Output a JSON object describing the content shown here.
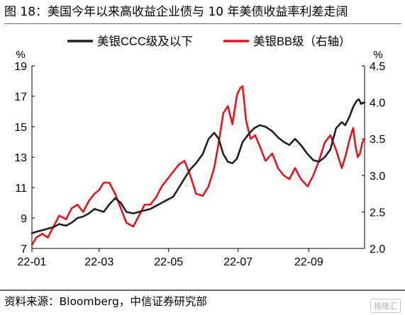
{
  "figure": {
    "title": "图 18：美国今年以来高收益企业债与 10 年美债收益率利差走阔",
    "source": "资料来源：Bloomberg，中信证券研究部",
    "watermark": "格隆汇"
  },
  "chart_data": {
    "type": "line",
    "title": "",
    "xlabel": "",
    "x_ticks": [
      "22-01",
      "22-03",
      "22-05",
      "22-07",
      "22-09"
    ],
    "x_range": [
      "2022-01-01",
      "2022-10-20"
    ],
    "left_axis": {
      "unit": "%",
      "ylim": [
        7,
        19
      ],
      "ticks": [
        7,
        9,
        11,
        13,
        15,
        17,
        19
      ]
    },
    "right_axis": {
      "unit": "%",
      "ylim": [
        2.0,
        4.5
      ],
      "ticks": [
        "2.0",
        "2.5",
        "3.0",
        "3.5",
        "4.0",
        "4.5"
      ]
    },
    "legend_position": "top",
    "colors": {
      "ccc": "#231f20",
      "bb": "#e4141c"
    },
    "series": [
      {
        "name": "美银CCC级及以下",
        "axis": "left",
        "points": [
          [
            "2022-01-01",
            8.0
          ],
          [
            "2022-01-05",
            8.1
          ],
          [
            "2022-01-10",
            8.2
          ],
          [
            "2022-01-15",
            8.3
          ],
          [
            "2022-01-20",
            8.4
          ],
          [
            "2022-01-25",
            8.6
          ],
          [
            "2022-01-31",
            8.5
          ],
          [
            "2022-02-05",
            8.7
          ],
          [
            "2022-02-10",
            9.0
          ],
          [
            "2022-02-15",
            9.1
          ],
          [
            "2022-02-20",
            9.3
          ],
          [
            "2022-02-25",
            9.6
          ],
          [
            "2022-03-01",
            9.5
          ],
          [
            "2022-03-05",
            9.4
          ],
          [
            "2022-03-10",
            9.9
          ],
          [
            "2022-03-15",
            10.3
          ],
          [
            "2022-03-20",
            10.0
          ],
          [
            "2022-03-25",
            9.4
          ],
          [
            "2022-03-31",
            9.3
          ],
          [
            "2022-04-05",
            9.4
          ],
          [
            "2022-04-10",
            9.5
          ],
          [
            "2022-04-15",
            9.6
          ],
          [
            "2022-04-20",
            9.8
          ],
          [
            "2022-04-25",
            10.0
          ],
          [
            "2022-04-30",
            10.2
          ],
          [
            "2022-05-05",
            10.4
          ],
          [
            "2022-05-10",
            11.0
          ],
          [
            "2022-05-15",
            11.6
          ],
          [
            "2022-05-20",
            12.2
          ],
          [
            "2022-05-25",
            12.6
          ],
          [
            "2022-05-31",
            13.2
          ],
          [
            "2022-06-05",
            14.2
          ],
          [
            "2022-06-10",
            14.6
          ],
          [
            "2022-06-14",
            14.2
          ],
          [
            "2022-06-18",
            13.2
          ],
          [
            "2022-06-22",
            12.7
          ],
          [
            "2022-06-26",
            12.6
          ],
          [
            "2022-06-30",
            12.9
          ],
          [
            "2022-07-05",
            14.0
          ],
          [
            "2022-07-10",
            14.5
          ],
          [
            "2022-07-15",
            14.9
          ],
          [
            "2022-07-20",
            15.1
          ],
          [
            "2022-07-25",
            15.0
          ],
          [
            "2022-07-31",
            14.7
          ],
          [
            "2022-08-05",
            14.3
          ],
          [
            "2022-08-10",
            14.0
          ],
          [
            "2022-08-15",
            13.8
          ],
          [
            "2022-08-20",
            14.2
          ],
          [
            "2022-08-25",
            13.8
          ],
          [
            "2022-08-31",
            13.2
          ],
          [
            "2022-09-05",
            12.8
          ],
          [
            "2022-09-10",
            12.7
          ],
          [
            "2022-09-15",
            13.0
          ],
          [
            "2022-09-20",
            13.5
          ],
          [
            "2022-09-25",
            14.9
          ],
          [
            "2022-09-30",
            15.3
          ],
          [
            "2022-10-03",
            15.1
          ],
          [
            "2022-10-07",
            15.7
          ],
          [
            "2022-10-10",
            16.3
          ],
          [
            "2022-10-13",
            16.7
          ],
          [
            "2022-10-15",
            16.8
          ],
          [
            "2022-10-17",
            16.5
          ],
          [
            "2022-10-20",
            16.6
          ]
        ]
      },
      {
        "name": "美银BB级（右轴）",
        "axis": "right",
        "points": [
          [
            "2022-01-01",
            2.05
          ],
          [
            "2022-01-05",
            2.15
          ],
          [
            "2022-01-10",
            2.2
          ],
          [
            "2022-01-15",
            2.15
          ],
          [
            "2022-01-20",
            2.3
          ],
          [
            "2022-01-25",
            2.45
          ],
          [
            "2022-01-31",
            2.4
          ],
          [
            "2022-02-05",
            2.55
          ],
          [
            "2022-02-10",
            2.6
          ],
          [
            "2022-02-15",
            2.5
          ],
          [
            "2022-02-20",
            2.65
          ],
          [
            "2022-02-25",
            2.75
          ],
          [
            "2022-03-01",
            2.8
          ],
          [
            "2022-03-05",
            2.9
          ],
          [
            "2022-03-10",
            2.9
          ],
          [
            "2022-03-15",
            2.75
          ],
          [
            "2022-03-20",
            2.55
          ],
          [
            "2022-03-25",
            2.35
          ],
          [
            "2022-03-31",
            2.3
          ],
          [
            "2022-04-05",
            2.45
          ],
          [
            "2022-04-10",
            2.6
          ],
          [
            "2022-04-15",
            2.6
          ],
          [
            "2022-04-20",
            2.7
          ],
          [
            "2022-04-25",
            2.85
          ],
          [
            "2022-04-30",
            2.95
          ],
          [
            "2022-05-05",
            3.05
          ],
          [
            "2022-05-10",
            3.15
          ],
          [
            "2022-05-15",
            3.2
          ],
          [
            "2022-05-20",
            3.0
          ],
          [
            "2022-05-25",
            2.75
          ],
          [
            "2022-05-31",
            2.72
          ],
          [
            "2022-06-05",
            2.85
          ],
          [
            "2022-06-10",
            3.1
          ],
          [
            "2022-06-14",
            3.45
          ],
          [
            "2022-06-18",
            3.85
          ],
          [
            "2022-06-22",
            3.95
          ],
          [
            "2022-06-26",
            3.7
          ],
          [
            "2022-06-30",
            4.1
          ],
          [
            "2022-07-03",
            4.2
          ],
          [
            "2022-07-05",
            4.22
          ],
          [
            "2022-07-08",
            3.75
          ],
          [
            "2022-07-12",
            3.5
          ],
          [
            "2022-07-16",
            3.55
          ],
          [
            "2022-07-20",
            3.4
          ],
          [
            "2022-07-25",
            3.2
          ],
          [
            "2022-07-31",
            3.3
          ],
          [
            "2022-08-05",
            3.1
          ],
          [
            "2022-08-10",
            3.0
          ],
          [
            "2022-08-15",
            2.95
          ],
          [
            "2022-08-20",
            3.1
          ],
          [
            "2022-08-25",
            2.95
          ],
          [
            "2022-08-31",
            2.85
          ],
          [
            "2022-09-05",
            3.0
          ],
          [
            "2022-09-10",
            3.2
          ],
          [
            "2022-09-15",
            3.45
          ],
          [
            "2022-09-20",
            3.55
          ],
          [
            "2022-09-25",
            3.35
          ],
          [
            "2022-09-30",
            3.1
          ],
          [
            "2022-10-03",
            3.25
          ],
          [
            "2022-10-07",
            3.5
          ],
          [
            "2022-10-10",
            3.65
          ],
          [
            "2022-10-12",
            3.4
          ],
          [
            "2022-10-14",
            3.25
          ],
          [
            "2022-10-16",
            3.3
          ],
          [
            "2022-10-18",
            3.45
          ],
          [
            "2022-10-20",
            3.5
          ]
        ]
      }
    ]
  }
}
